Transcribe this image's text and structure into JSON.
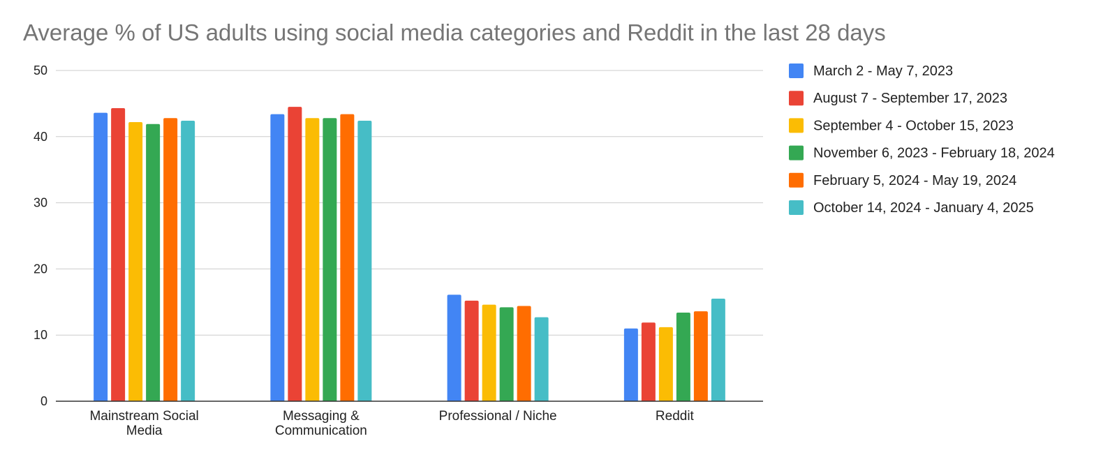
{
  "chart_data": {
    "type": "bar",
    "title": "Average % of US adults using social media categories and Reddit in the last 28 days",
    "xlabel": "",
    "ylabel": "",
    "ylim": [
      0,
      50
    ],
    "yticks": [
      0,
      10,
      20,
      30,
      40,
      50
    ],
    "grid": true,
    "legend_position": "right",
    "categories": [
      [
        "Mainstream Social",
        "Media"
      ],
      [
        "Messaging &",
        "Communication"
      ],
      [
        "Professional / Niche"
      ],
      [
        "Reddit"
      ]
    ],
    "series": [
      {
        "name": "March 2 - May 7, 2023",
        "color": "#4285F4",
        "values": [
          43.6,
          43.4,
          16.1,
          11.0
        ]
      },
      {
        "name": "August 7 - September 17, 2023",
        "color": "#EA4335",
        "values": [
          44.3,
          44.5,
          15.2,
          11.9
        ]
      },
      {
        "name": "September 4 - October 15, 2023",
        "color": "#FBBC04",
        "values": [
          42.2,
          42.8,
          14.6,
          11.2
        ]
      },
      {
        "name": "November 6, 2023 - February 18, 2024",
        "color": "#34A853",
        "values": [
          41.9,
          42.8,
          14.2,
          13.4
        ]
      },
      {
        "name": "February 5, 2024 - May 19, 2024",
        "color": "#FF6D01",
        "values": [
          42.8,
          43.4,
          14.4,
          13.6
        ]
      },
      {
        "name": "October 14, 2024 - January 4, 2025",
        "color": "#46BDC6",
        "values": [
          42.4,
          42.4,
          12.7,
          15.5
        ]
      }
    ]
  }
}
